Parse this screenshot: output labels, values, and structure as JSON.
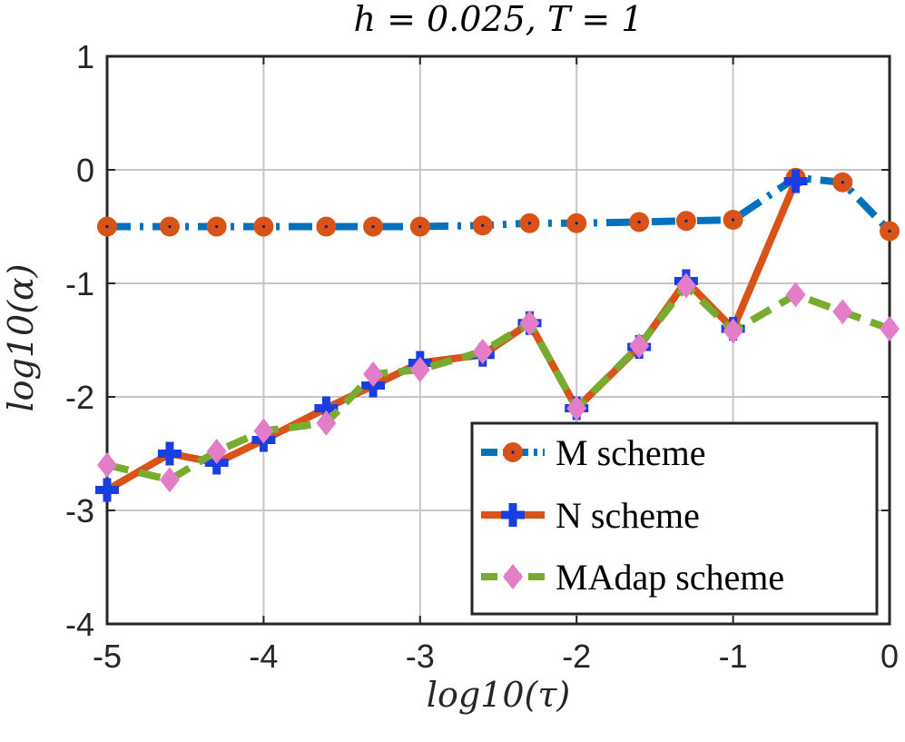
{
  "chart_data": {
    "type": "line",
    "title": "h = 0.025, T = 1",
    "xlabel": "log10(τ)",
    "ylabel": "log10(α)",
    "xlim": [
      -5,
      0
    ],
    "ylim": [
      -4,
      1
    ],
    "xticks": [
      -5,
      -4,
      -3,
      -2,
      -1,
      0
    ],
    "yticks": [
      -4,
      -3,
      -2,
      -1,
      0,
      1
    ],
    "xtick_labels": [
      "-5",
      "-4",
      "-3",
      "-2",
      "-1",
      "0"
    ],
    "ytick_labels": [
      "-4",
      "-3",
      "-2",
      "-1",
      "0",
      "1"
    ],
    "grid": true,
    "legend_position": "bottom-right",
    "x": [
      -5,
      -4.6,
      -4.3,
      -4,
      -3.6,
      -3.3,
      -3,
      -2.6,
      -2.3,
      -2,
      -1.6,
      -1.3,
      -1,
      -0.6,
      -0.3,
      0
    ],
    "series": [
      {
        "name": "M scheme",
        "color": "#0072BD",
        "marker_color": "#D95319",
        "style": "dashdot",
        "marker": "circle",
        "values": [
          -0.5,
          -0.5,
          -0.5,
          -0.5,
          -0.5,
          -0.5,
          -0.5,
          -0.49,
          -0.47,
          -0.47,
          -0.46,
          -0.45,
          -0.44,
          -0.07,
          -0.11,
          -0.54
        ]
      },
      {
        "name": "N scheme",
        "color": "#D95319",
        "marker_color": "#1A3FE0",
        "style": "solid",
        "marker": "plus",
        "values": [
          -2.82,
          -2.5,
          -2.58,
          -2.38,
          -2.1,
          -1.9,
          -1.7,
          -1.63,
          -1.35,
          -2.1,
          -1.56,
          -0.98,
          -1.4,
          -0.1,
          null,
          null
        ]
      },
      {
        "name": "MAdap scheme",
        "color": "#77AC30",
        "marker_color": "#E47DC8",
        "style": "dashed",
        "marker": "diamond",
        "values": [
          -2.6,
          -2.73,
          -2.48,
          -2.3,
          -2.23,
          -1.8,
          -1.76,
          -1.6,
          -1.35,
          -2.1,
          -1.55,
          -1.02,
          -1.42,
          -1.1,
          -1.25,
          -1.4
        ]
      }
    ]
  }
}
